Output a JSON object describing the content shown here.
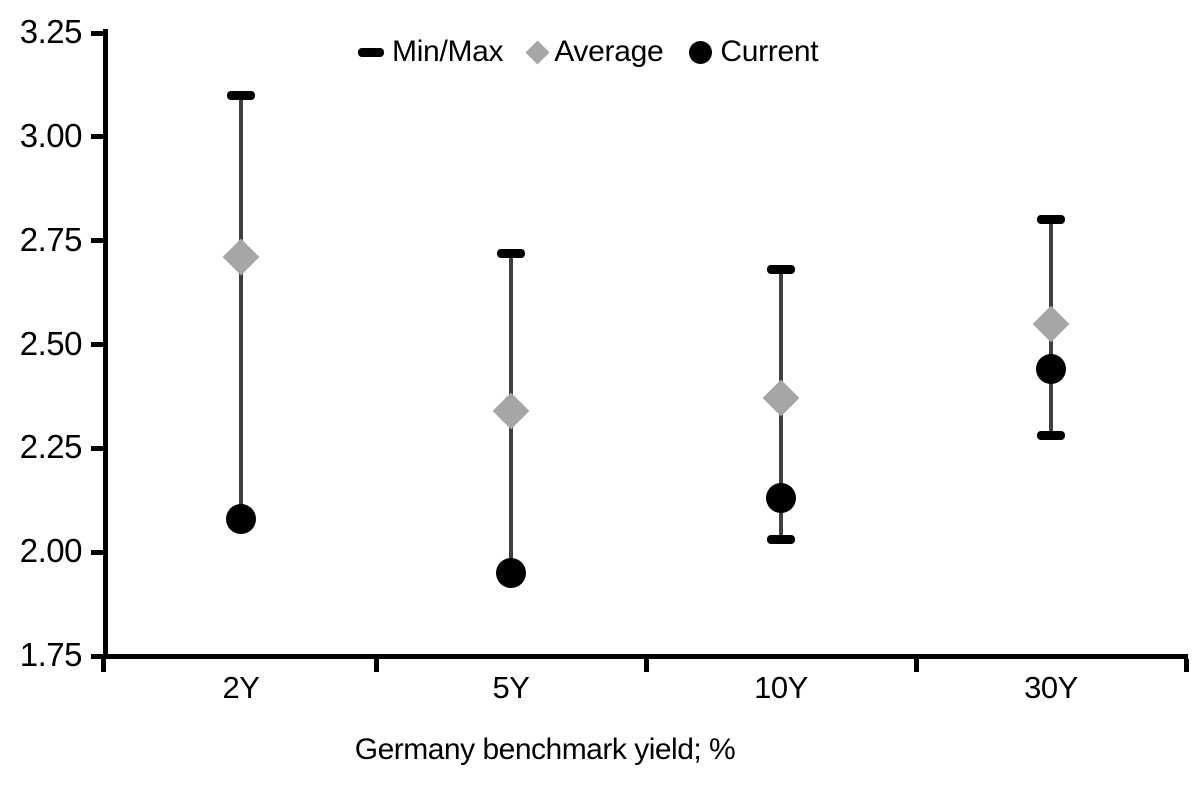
{
  "figure": {
    "background": "#ffffff",
    "legend": {
      "position": "top-center",
      "items": [
        {
          "label": "Min/Max",
          "marker": "dash",
          "color": "#000000"
        },
        {
          "label": "Average",
          "marker": "diamond",
          "color": "#a6a6a6"
        },
        {
          "label": "Current",
          "marker": "circle",
          "color": "#000000"
        }
      ]
    }
  },
  "chart_data": {
    "type": "scatter",
    "subtype": "min-max-range-with-markers",
    "title": "",
    "xlabel": "Germany benchmark yield; %",
    "ylabel": "",
    "categories": [
      "2Y",
      "5Y",
      "10Y",
      "30Y"
    ],
    "series": [
      {
        "name": "Min/Max",
        "role": "range",
        "max": [
          3.1,
          2.72,
          2.68,
          2.8
        ],
        "min": [
          2.08,
          1.95,
          2.03,
          2.28
        ],
        "min_cap_visible": [
          false,
          false,
          true,
          true
        ]
      },
      {
        "name": "Average",
        "role": "markers",
        "marker": "diamond",
        "color": "#a6a6a6",
        "values": [
          2.71,
          2.34,
          2.37,
          2.55
        ]
      },
      {
        "name": "Current",
        "role": "markers",
        "marker": "circle",
        "color": "#000000",
        "values": [
          2.08,
          1.95,
          2.13,
          2.44
        ]
      }
    ],
    "ylim": [
      1.75,
      3.25
    ],
    "ytick_step": 0.25,
    "ytick_labels": [
      "3.25",
      "3.00",
      "2.75",
      "2.50",
      "2.25",
      "2.00",
      "1.75"
    ],
    "grid": false,
    "legend_position": "top-center",
    "colors": {
      "range_line": "#3f3f3f",
      "cap": "#000000",
      "axis": "#000000",
      "text": "#000000"
    }
  }
}
